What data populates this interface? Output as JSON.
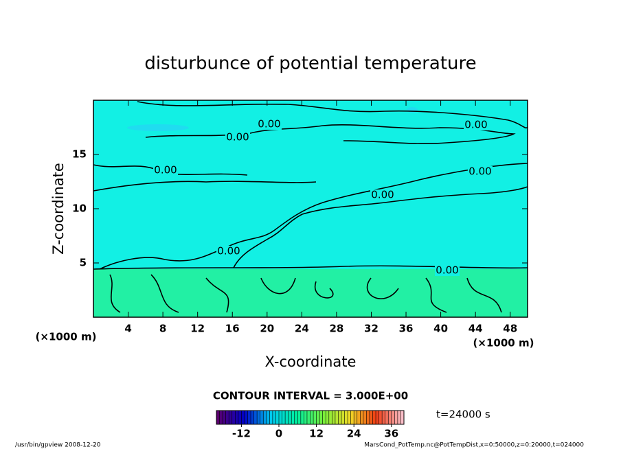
{
  "chart_data": {
    "type": "contour",
    "title": "disturbunce of potential temperature",
    "xlabel": "X-coordinate",
    "ylabel": "Z-coordinate",
    "x_unit_left": "(×1000 m)",
    "x_unit_right": "(×1000 m)",
    "xlim": [
      0,
      50
    ],
    "ylim": [
      0,
      20
    ],
    "xticks": [
      4,
      8,
      12,
      16,
      20,
      24,
      28,
      32,
      36,
      40,
      44,
      48
    ],
    "yticks": [
      5,
      10,
      15
    ],
    "contour_level": {
      "value": 0,
      "label": "0.00"
    },
    "contour_interval": "CONTOUR INTERVAL = 3.000E+00",
    "time_label": "t=24000 s",
    "colorbar": {
      "lim": [
        -20,
        40
      ],
      "ticks": [
        -12,
        0,
        12,
        24,
        36
      ]
    },
    "footer_left": "/usr/bin/gpview   2008-12-20",
    "footer_right": "MarsCond_PotTemp.nc@PotTempDist,x=0:50000,z=0:20000,t=024000"
  }
}
